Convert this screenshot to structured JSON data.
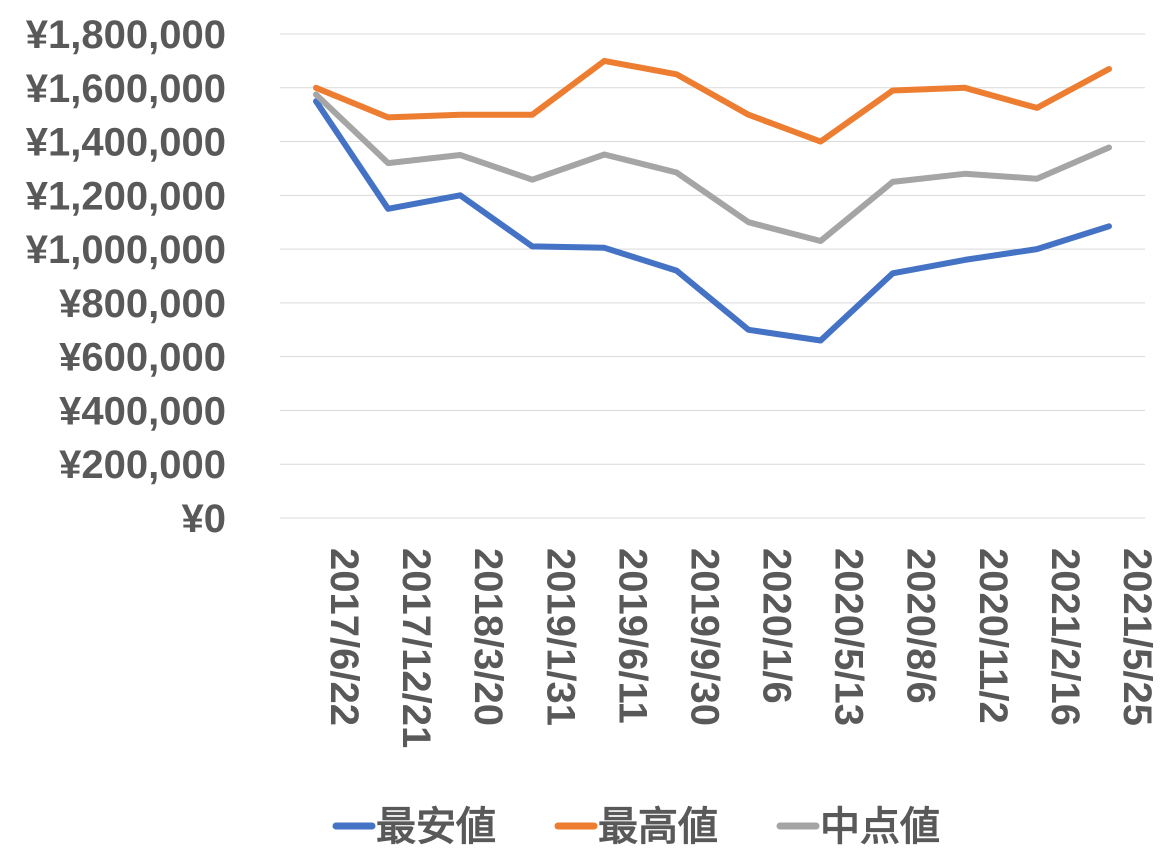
{
  "chart_data": {
    "type": "line",
    "title": "",
    "xlabel": "",
    "ylabel": "",
    "ylim": [
      0,
      1800000
    ],
    "y_ticks": [
      0,
      200000,
      400000,
      600000,
      800000,
      1000000,
      1200000,
      1400000,
      1600000,
      1800000
    ],
    "y_tick_labels": [
      "¥0",
      "¥200,000",
      "¥400,000",
      "¥600,000",
      "¥800,000",
      "¥1,000,000",
      "¥1,200,000",
      "¥1,400,000",
      "¥1,600,000",
      "¥1,800,000"
    ],
    "grid": true,
    "legend_position": "bottom",
    "categories": [
      "2017/6/22",
      "2017/12/21",
      "2018/3/20",
      "2019/1/31",
      "2019/6/11",
      "2019/9/30",
      "2020/1/6",
      "2020/5/13",
      "2020/8/6",
      "2020/11/2",
      "2021/2/16",
      "2021/5/25"
    ],
    "series": [
      {
        "name": "最安値",
        "color": "#4472c4",
        "values": [
          1550000,
          1150000,
          1200000,
          1010000,
          1005000,
          920000,
          700000,
          660000,
          910000,
          960000,
          1000000,
          1085000
        ]
      },
      {
        "name": "最高値",
        "color": "#ed7d31",
        "values": [
          1600000,
          1490000,
          1500000,
          1500000,
          1700000,
          1650000,
          1500000,
          1400000,
          1590000,
          1600000,
          1525000,
          1670000
        ]
      },
      {
        "name": "中点値",
        "color": "#a5a5a5",
        "values": [
          1575000,
          1320000,
          1350000,
          1258000,
          1352000,
          1285000,
          1100000,
          1030000,
          1250000,
          1280000,
          1262000,
          1378000
        ]
      }
    ]
  }
}
